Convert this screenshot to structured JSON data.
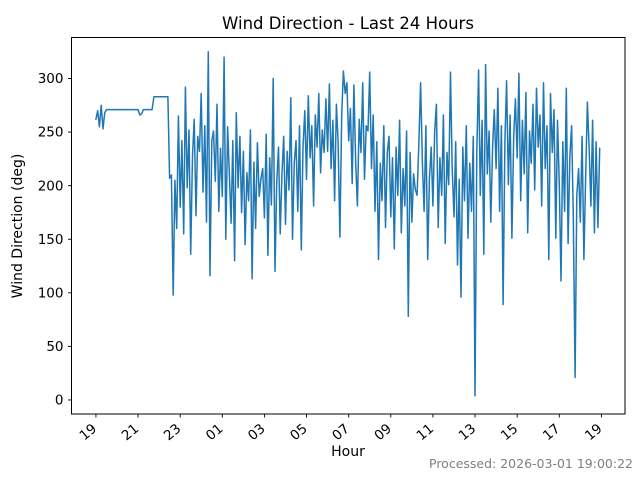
{
  "chart_data": {
    "type": "line",
    "title": "Wind Direction - Last 24 Hours",
    "xlabel": "Hour",
    "ylabel": "Wind Direction (deg)",
    "x_start_clock_hour": 19,
    "hours_span": 24,
    "interval_minutes": 5,
    "xlim": [
      -1.16,
      25.12
    ],
    "ylim": [
      -13.1,
      338.3
    ],
    "xtick_positions": [
      0,
      2,
      4,
      6,
      8,
      10,
      12,
      14,
      16,
      18,
      20,
      22,
      24
    ],
    "xtick_labels": [
      "19",
      "21",
      "23",
      "01",
      "03",
      "05",
      "07",
      "09",
      "11",
      "13",
      "15",
      "17",
      "19"
    ],
    "yticks": [
      0,
      50,
      100,
      150,
      200,
      250,
      300
    ],
    "grid": false,
    "legend": "none",
    "line_color": "#1f77b4",
    "values": [
      262,
      270,
      255,
      275,
      253,
      268,
      271,
      271,
      271,
      271,
      271,
      271,
      271,
      271,
      271,
      271,
      271,
      271,
      271,
      271,
      271,
      271,
      271,
      271,
      271,
      266,
      267,
      271,
      271,
      271,
      271,
      271,
      271,
      283,
      283,
      283,
      283,
      283,
      283,
      283,
      283,
      283,
      207,
      210,
      98,
      205,
      160,
      265,
      180,
      242,
      155,
      292,
      198,
      252,
      136,
      228,
      262,
      172,
      246,
      232,
      286,
      194,
      256,
      166,
      325,
      116,
      242,
      251,
      204,
      276,
      176,
      235,
      190,
      320,
      150,
      255,
      212,
      165,
      242,
      130,
      268,
      198,
      246,
      175,
      232,
      145,
      212,
      186,
      252,
      113,
      222,
      160,
      240,
      190,
      206,
      216,
      170,
      248,
      135,
      226,
      182,
      300,
      120,
      202,
      236,
      155,
      212,
      246,
      164,
      232,
      196,
      282,
      150,
      222,
      242,
      176,
      256,
      140,
      236,
      270,
      206,
      284,
      226,
      256,
      181,
      266,
      236,
      286,
      212,
      252,
      231,
      281,
      232,
      295,
      216,
      261,
      186,
      276,
      241,
      152,
      266,
      307,
      286,
      296,
      242,
      272,
      202,
      294,
      221,
      181,
      262,
      231,
      296,
      206,
      256,
      251,
      306,
      216,
      266,
      176,
      241,
      131,
      221,
      186,
      256,
      161,
      231,
      246,
      171,
      226,
      141,
      236,
      191,
      261,
      156,
      216,
      181,
      251,
      78,
      231,
      166,
      211,
      196,
      191,
      241,
      296,
      221,
      176,
      256,
      131,
      206,
      236,
      181,
      251,
      276,
      161,
      226,
      191,
      266,
      146,
      231,
      201,
      306,
      216,
      171,
      241,
      126,
      206,
      96,
      236,
      186,
      256,
      151,
      221,
      176,
      246,
      4,
      231,
      308,
      191,
      261,
      136,
      313,
      211,
      251,
      166,
      236,
      271,
      216,
      291,
      176,
      256,
      89,
      241,
      298,
      201,
      266,
      151,
      246,
      281,
      226,
      305,
      186,
      261,
      211,
      287,
      156,
      251,
      221,
      276,
      196,
      291,
      236,
      266,
      181,
      296,
      216,
      256,
      131,
      286,
      231,
      271,
      151,
      261,
      201,
      111,
      241,
      176,
      291,
      146,
      226,
      256,
      171,
      21,
      191,
      216,
      166,
      246,
      131,
      206,
      278,
      236,
      181,
      261,
      156,
      241,
      161,
      235
    ]
  },
  "footer": {
    "text": "Processed: 2026-03-01 19:00:22",
    "color": "#7f7f7f"
  },
  "colors": {
    "background": "#ffffff",
    "axis": "#000000",
    "series": "#1f77b4"
  }
}
